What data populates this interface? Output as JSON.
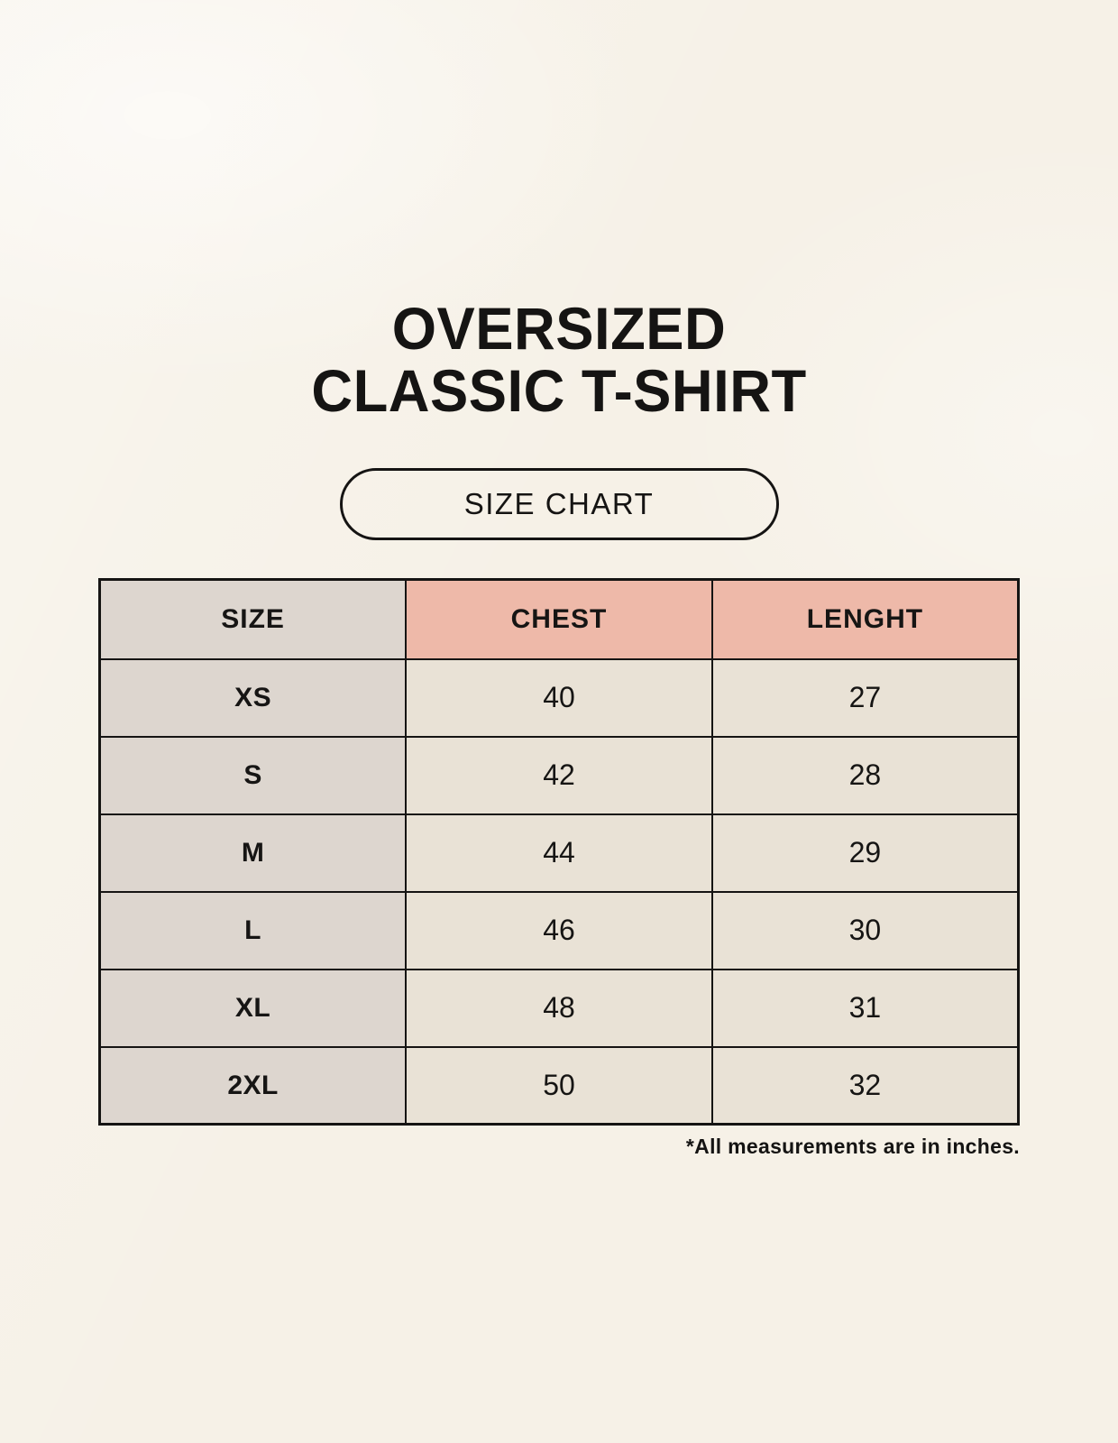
{
  "title": {
    "line1": "OVERSIZED",
    "line2": "CLASSIC T-SHIRT"
  },
  "size_chart_button": {
    "label": "SIZE CHART"
  },
  "chart_data": {
    "type": "table",
    "title": "Oversized Classic T-Shirt Size Chart",
    "columns": [
      "SIZE",
      "CHEST",
      "LENGHT"
    ],
    "rows": [
      [
        "XS",
        "40",
        "27"
      ],
      [
        "S",
        "42",
        "28"
      ],
      [
        "M",
        "44",
        "29"
      ],
      [
        "L",
        "46",
        "30"
      ],
      [
        "XL",
        "48",
        "31"
      ],
      [
        "2XL",
        "50",
        "32"
      ]
    ],
    "units": "inches"
  },
  "footnote": "*All measurements are in inches.",
  "colors": {
    "background": "#f6f1e7",
    "header_accent": "#eeb9a9",
    "size_column": "#ddd6cf",
    "value_cell": "#e9e2d6",
    "border": "#151413",
    "text": "#151413"
  }
}
